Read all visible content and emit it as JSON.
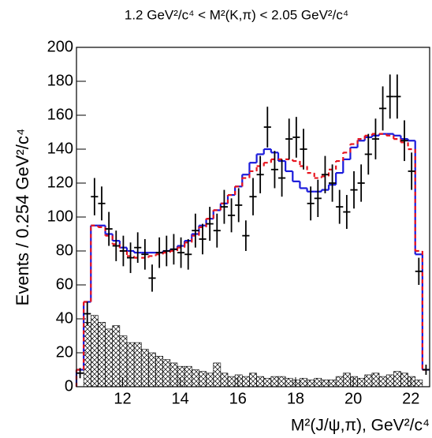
{
  "chart_data": {
    "type": "histogram",
    "title": "1.2 GeV²/c⁴ < M²(K,π) < 2.05 GeV²/c⁴",
    "x_label": "M²(J/ψ,π), GeV²/c⁴",
    "y_label": "Events / 0.254 GeV²/c⁴",
    "bins": [
      10.4,
      10.65,
      10.9,
      11.15,
      11.4,
      11.65,
      11.9,
      12.15,
      12.4,
      12.65,
      12.9,
      13.15,
      13.4,
      13.65,
      13.9,
      14.15,
      14.4,
      14.65,
      14.9,
      15.15,
      15.4,
      15.65,
      15.9,
      16.15,
      16.4,
      16.65,
      16.9,
      17.15,
      17.4,
      17.65,
      17.9,
      18.15,
      18.4,
      18.65,
      18.9,
      19.15,
      19.4,
      19.65,
      19.9,
      20.15,
      20.4,
      20.65,
      20.9,
      21.15,
      21.4,
      21.65,
      21.9,
      22.15,
      22.4,
      22.65
    ],
    "values": [
      8,
      43,
      112,
      108,
      93,
      83,
      80,
      76,
      82,
      78,
      64,
      79,
      80,
      81,
      79,
      78,
      92,
      87,
      96,
      92,
      106,
      101,
      107,
      89,
      112,
      125,
      153,
      128,
      123,
      146,
      147,
      140,
      108,
      111,
      125,
      120,
      106,
      103,
      116,
      120,
      137,
      146,
      164,
      171,
      171,
      145,
      127,
      68,
      10
    ],
    "errors": [
      3,
      7,
      11,
      10,
      10,
      9,
      9,
      9,
      9,
      9,
      8,
      9,
      9,
      9,
      9,
      9,
      10,
      9,
      10,
      10,
      10,
      10,
      10,
      9,
      11,
      11,
      12,
      11,
      11,
      12,
      12,
      12,
      10,
      11,
      11,
      11,
      10,
      10,
      11,
      11,
      12,
      12,
      13,
      13,
      13,
      12,
      11,
      8,
      3
    ],
    "fit": [
      10,
      50,
      95,
      95,
      90,
      86,
      82,
      80,
      79,
      79,
      79,
      79,
      80,
      81,
      83,
      86,
      90,
      95,
      99,
      104,
      108,
      113,
      118,
      125,
      132,
      137,
      140,
      138,
      133,
      127,
      121,
      117,
      115,
      115,
      116,
      119,
      126,
      134,
      141,
      145,
      147,
      148,
      149,
      149,
      148,
      146,
      145,
      78,
      10
    ],
    "fit_color": "#1a1adb",
    "fit_dashed": [
      10,
      50,
      95,
      94,
      89,
      84,
      80,
      77,
      76,
      76,
      77,
      78,
      79,
      80,
      82,
      85,
      89,
      94,
      99,
      104,
      108,
      113,
      118,
      123,
      127,
      130,
      132,
      134,
      134,
      134,
      133,
      130,
      126,
      123,
      124,
      128,
      133,
      138,
      143,
      146,
      148,
      149,
      149,
      148,
      146,
      144,
      140,
      80,
      10
    ],
    "fit_dashed_color": "#e8141e",
    "background": [
      0,
      38,
      42,
      38,
      34,
      36,
      30,
      26,
      26,
      22,
      20,
      18,
      16,
      14,
      12,
      12,
      10,
      9,
      8,
      14,
      8,
      6,
      7,
      6,
      8,
      6,
      5,
      6,
      6,
      5,
      4,
      5,
      4,
      5,
      4,
      4,
      6,
      8,
      6,
      5,
      7,
      8,
      6,
      7,
      9,
      8,
      6,
      4,
      0
    ],
    "background_hatch": true,
    "xlim": [
      10.4,
      22.65
    ],
    "ylim": [
      0,
      200
    ],
    "xticks": [
      12,
      14,
      16,
      18,
      20,
      22
    ],
    "yticks": [
      0,
      20,
      40,
      60,
      80,
      100,
      120,
      140,
      160,
      180,
      200
    ]
  }
}
